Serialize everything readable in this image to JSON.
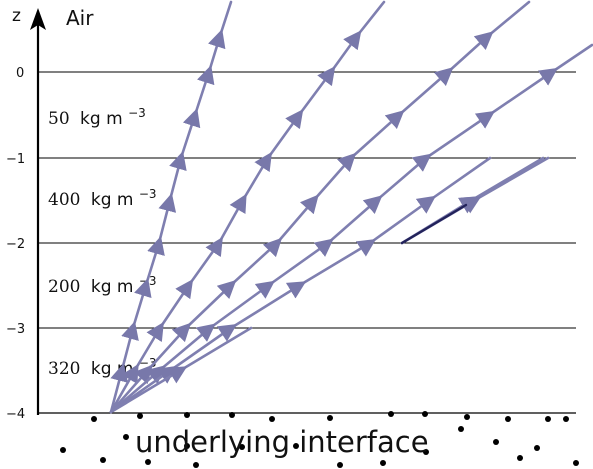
{
  "axis": {
    "label": "z",
    "ticks": [
      "0",
      "−1",
      "−2",
      "−3",
      "−4"
    ]
  },
  "top_label": "Air",
  "layers": [
    {
      "value": "50",
      "unit": "kg m",
      "exp": "−3"
    },
    {
      "value": "400",
      "unit": "kg m",
      "exp": "−3"
    },
    {
      "value": "200",
      "unit": "kg m",
      "exp": "−3"
    },
    {
      "value": "320",
      "unit": "kg m",
      "exp": "−3"
    }
  ],
  "bottom_label": "underlying interface",
  "colors": {
    "ray": "#7f7fb0",
    "ray_dark": "#22225a",
    "line": "#000000",
    "dot": "#000000"
  }
}
